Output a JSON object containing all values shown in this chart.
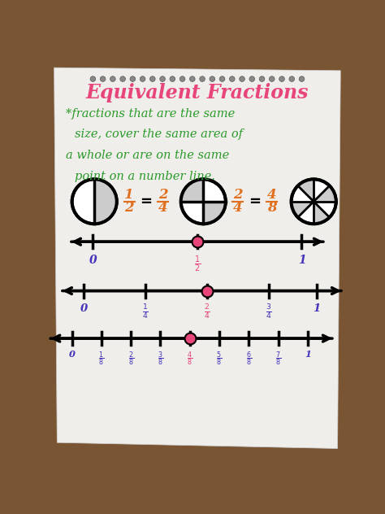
{
  "title": "Equivalent Fractions",
  "subtitle_lines": [
    "*fractions that are the same",
    "size, cover the same area of",
    "a whole or are on the same",
    "point on a number line."
  ],
  "title_color": "#e8457a",
  "subtitle_color": "#2a9a2a",
  "bg_color": "#7a5533",
  "paper_color": "#f0eeea",
  "number_line_color": "#111111",
  "highlight_dot_color": "#e8457a",
  "fraction_color_orange": "#e07020",
  "fraction_color_purple": "#4433bb",
  "fraction_color_pink": "#e8457a",
  "label_color_purple": "#4433bb"
}
